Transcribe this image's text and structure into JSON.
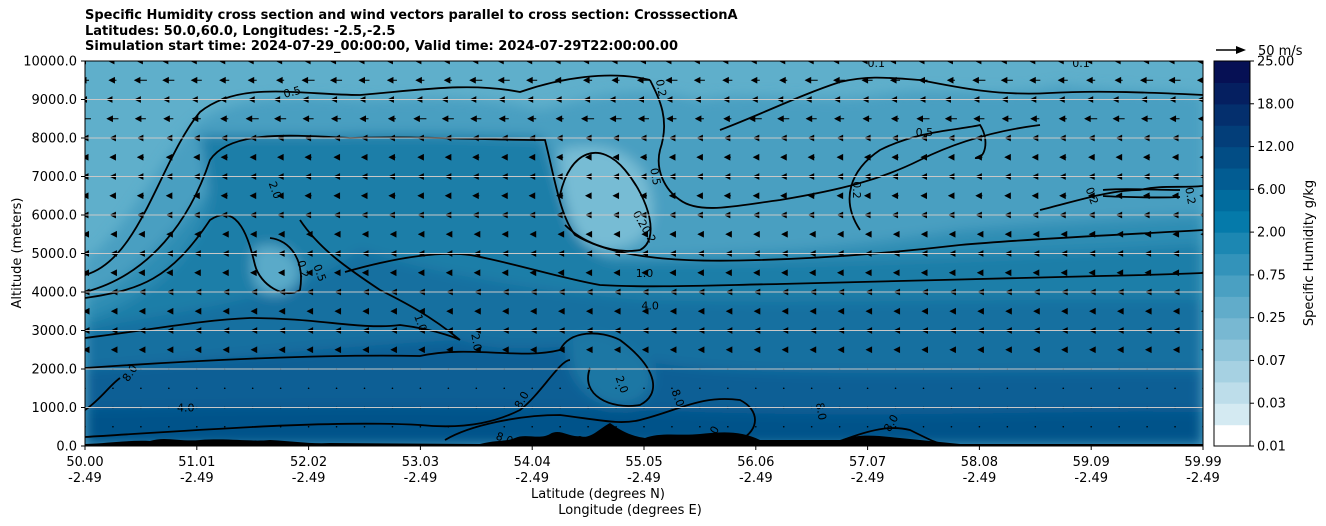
{
  "chart_data": {
    "type": "heatmap",
    "title_lines": [
      "Specific Humidity cross section and wind vectors parallel to cross section: CrosssectionA",
      "Latitudes: 50.0,60.0, Longitudes: -2.5,-2.5",
      "Simulation start time: 2024-07-29_00:00:00, Valid time: 2024-07-29T22:00:00.00"
    ],
    "ylabel": "Altitude (meters)",
    "xlabel_lines": [
      "Latitude (degrees N)",
      "Longitude (degrees E)"
    ],
    "colorbar_label": "Specific Humidity g/kg",
    "ylim": [
      0,
      10000
    ],
    "yticks": [
      "0.0",
      "1000.0",
      "2000.0",
      "3000.0",
      "4000.0",
      "5000.0",
      "6000.0",
      "7000.0",
      "8000.0",
      "9000.0",
      "10000.0"
    ],
    "xticks": [
      {
        "lat": "50.00",
        "lon": "-2.49"
      },
      {
        "lat": "51.01",
        "lon": "-2.49"
      },
      {
        "lat": "52.02",
        "lon": "-2.49"
      },
      {
        "lat": "53.03",
        "lon": "-2.49"
      },
      {
        "lat": "54.04",
        "lon": "-2.49"
      },
      {
        "lat": "55.05",
        "lon": "-2.49"
      },
      {
        "lat": "56.06",
        "lon": "-2.49"
      },
      {
        "lat": "57.07",
        "lon": "-2.49"
      },
      {
        "lat": "58.08",
        "lon": "-2.49"
      },
      {
        "lat": "59.09",
        "lon": "-2.49"
      },
      {
        "lat": "59.99",
        "lon": "-2.49"
      }
    ],
    "colorbar_ticks": [
      "0.01",
      "0.03",
      "0.07",
      "0.25",
      "0.75",
      "2.00",
      "6.00",
      "12.00",
      "18.00",
      "25.00"
    ],
    "colorbar_levels": 18,
    "quiver_key": "50 m/s",
    "contour_labels": [
      {
        "text": "0.5",
        "lat": 51.85,
        "alt": 9200,
        "rot": -15
      },
      {
        "text": "0.1",
        "lat": 57.07,
        "alt": 9950,
        "rot": 0
      },
      {
        "text": "0.1",
        "lat": 58.9,
        "alt": 9950,
        "rot": 0
      },
      {
        "text": "0.2",
        "lat": 55.15,
        "alt": 9300,
        "rot": 80
      },
      {
        "text": "0.5",
        "lat": 55.1,
        "alt": 7000,
        "rot": 80
      },
      {
        "text": "0.5",
        "lat": 57.5,
        "alt": 8150,
        "rot": 0
      },
      {
        "text": "0.2",
        "lat": 56.9,
        "alt": 6650,
        "rot": 90
      },
      {
        "text": "0.2",
        "lat": 59.0,
        "alt": 6500,
        "rot": 70
      },
      {
        "text": "0.2",
        "lat": 59.88,
        "alt": 6500,
        "rot": 80
      },
      {
        "text": "2.0",
        "lat": 51.7,
        "alt": 6650,
        "rot": 70
      },
      {
        "text": "0.20.2",
        "lat": 55.0,
        "alt": 5700,
        "rot": 60
      },
      {
        "text": "0.2",
        "lat": 51.95,
        "alt": 4600,
        "rot": 75
      },
      {
        "text": "0.5",
        "lat": 52.1,
        "alt": 4500,
        "rot": 70
      },
      {
        "text": "1.0",
        "lat": 55.0,
        "alt": 4500,
        "rot": 0
      },
      {
        "text": "4.0",
        "lat": 55.05,
        "alt": 3650,
        "rot": 0
      },
      {
        "text": "1.0",
        "lat": 53.0,
        "alt": 3200,
        "rot": 70
      },
      {
        "text": "2.0",
        "lat": 53.5,
        "alt": 2700,
        "rot": 80
      },
      {
        "text": "8.0",
        "lat": 50.4,
        "alt": 1900,
        "rot": -55
      },
      {
        "text": "4.0",
        "lat": 50.9,
        "alt": 1000,
        "rot": 0
      },
      {
        "text": "2.0",
        "lat": 54.8,
        "alt": 1600,
        "rot": 70
      },
      {
        "text": "8.0",
        "lat": 53.9,
        "alt": 1200,
        "rot": -60
      },
      {
        "text": "8.0",
        "lat": 55.3,
        "alt": 1250,
        "rot": 70
      },
      {
        "text": "8.0",
        "lat": 56.58,
        "alt": 900,
        "rot": 80
      },
      {
        "text": "8.0",
        "lat": 57.2,
        "alt": 600,
        "rot": -60
      },
      {
        "text": "8.0",
        "lat": 53.75,
        "alt": 200,
        "rot": 20
      },
      {
        "text": "2.0",
        "lat": 55.6,
        "alt": 300,
        "rot": -60
      }
    ]
  }
}
